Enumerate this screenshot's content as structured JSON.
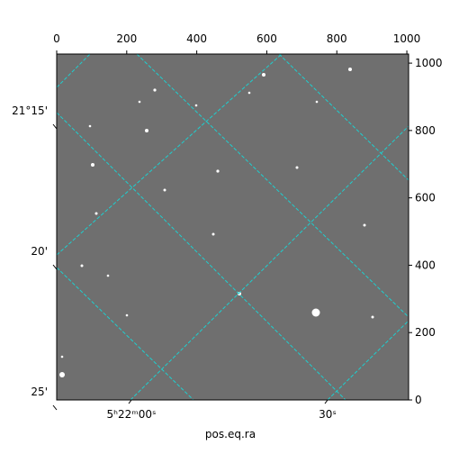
{
  "chart_data": {
    "type": "sky-image",
    "x_label": "pos.eq.ra",
    "xlim": [
      0,
      1005
    ],
    "xticks": [
      0,
      200,
      400,
      600,
      800,
      1000
    ],
    "ylim": [
      0,
      1027
    ],
    "yticks": [
      0,
      200,
      400,
      600,
      800,
      1000
    ],
    "dec_tick_labels": [
      "21°15'",
      "20'",
      "25'"
    ],
    "ra_tick_labels": [
      "5ʰ22ᵐ00ˢ",
      "30ˢ"
    ],
    "image_color": "#6f6f6f",
    "grid_color": "#1ecfcf"
  }
}
